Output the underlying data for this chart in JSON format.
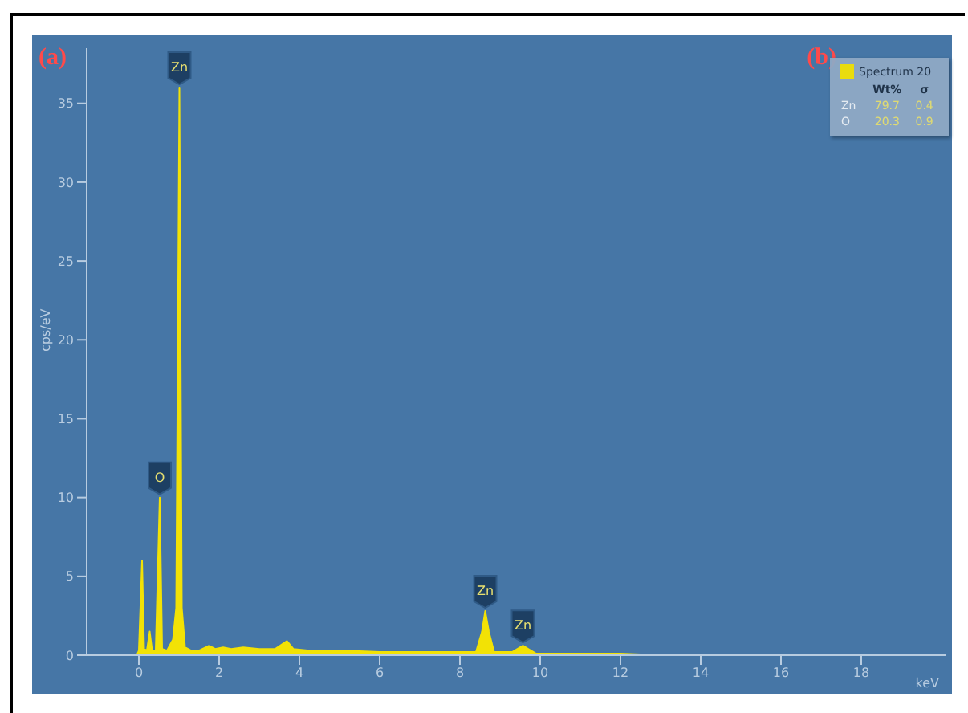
{
  "chart_data": {
    "type": "area",
    "xlabel": "keV",
    "ylabel": "cps/eV",
    "xlim": [
      -1.3,
      20.1
    ],
    "ylim": [
      0,
      38.5
    ],
    "xticks": [
      0,
      2,
      4,
      6,
      8,
      10,
      12,
      14,
      16,
      18
    ],
    "yticks": [
      0,
      5,
      10,
      15,
      20,
      25,
      30,
      35
    ],
    "legend": "top right",
    "x": [
      -0.05,
      0.0,
      0.08,
      0.13,
      0.2,
      0.27,
      0.33,
      0.42,
      0.52,
      0.58,
      0.7,
      0.85,
      0.93,
      1.01,
      1.07,
      1.15,
      1.3,
      1.5,
      1.75,
      1.9,
      2.1,
      2.3,
      2.6,
      3.0,
      3.4,
      3.69,
      3.85,
      4.2,
      5.0,
      6.0,
      7.0,
      8.0,
      8.4,
      8.55,
      8.63,
      8.72,
      8.85,
      9.3,
      9.5,
      9.57,
      9.7,
      9.9,
      11,
      12,
      13,
      14,
      20
    ],
    "series": [
      {
        "name": "Spectrum 20",
        "color": "#f2e205",
        "values": [
          0,
          0.3,
          6.0,
          0.4,
          0.3,
          1.5,
          0.3,
          0.3,
          10.0,
          0.4,
          0.3,
          1.0,
          3.0,
          36.0,
          3.0,
          0.5,
          0.3,
          0.3,
          0.6,
          0.4,
          0.5,
          0.4,
          0.5,
          0.4,
          0.4,
          0.9,
          0.4,
          0.3,
          0.3,
          0.2,
          0.2,
          0.2,
          0.2,
          1.5,
          2.8,
          1.5,
          0.2,
          0.2,
          0.5,
          0.6,
          0.4,
          0.1,
          0.1,
          0.1,
          0,
          0,
          0
        ]
      }
    ],
    "annotations": [
      {
        "text": "Zn",
        "x": 1.01,
        "y": 36.0
      },
      {
        "text": "O",
        "x": 0.52,
        "y": 10.0
      },
      {
        "text": "Zn",
        "x": 8.63,
        "y": 2.8
      },
      {
        "text": "Zn",
        "x": 9.57,
        "y": 0.6
      },
      "(a)",
      "(b)",
      "Wt%",
      "σ",
      "Zn",
      "79.7",
      "0.4",
      "O",
      "20.3",
      "0.9"
    ]
  }
}
